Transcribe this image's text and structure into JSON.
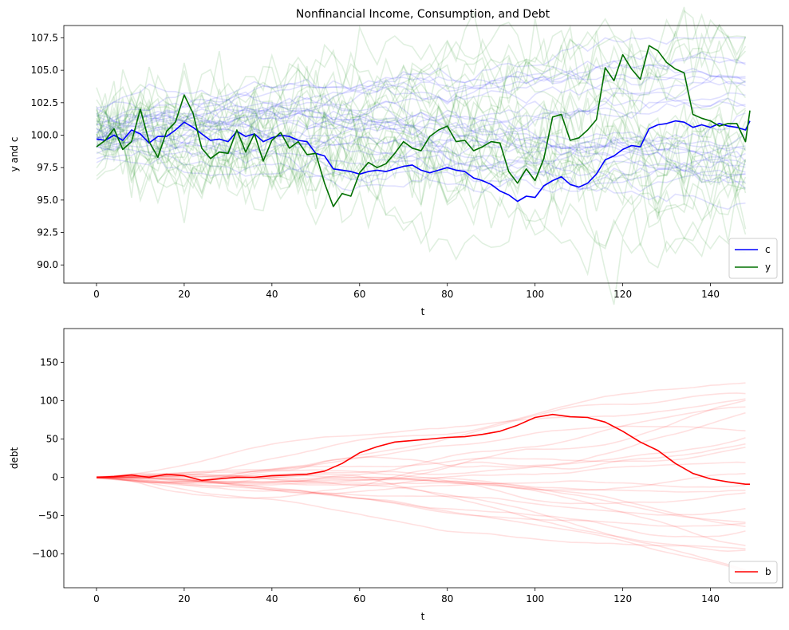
{
  "chart_data": [
    {
      "type": "line",
      "title": "Nonfinancial Income, Consumption, and Debt",
      "xlabel": "t",
      "ylabel": "y and c",
      "xlim": [
        -7.45,
        156.45
      ],
      "ylim": [
        88.6,
        108.45
      ],
      "xticks": [
        0,
        20,
        40,
        60,
        80,
        100,
        120,
        140
      ],
      "yticks": [
        90.0,
        92.5,
        95.0,
        97.5,
        100.0,
        102.5,
        105.0,
        107.5
      ],
      "ytick_labels": [
        "90.0",
        "92.5",
        "95.0",
        "97.5",
        "100.0",
        "102.5",
        "105.0",
        "107.5"
      ],
      "grid": false,
      "legend": {
        "position": "lower-right",
        "entries": [
          "c",
          "y"
        ]
      },
      "background_paths": {
        "count_per_series": 25,
        "alpha": 0.12,
        "note_colors": {
          "c": "#0000ff",
          "y": "#008000"
        }
      },
      "series": [
        {
          "name": "c",
          "color": "#0000ff",
          "x": [
            0,
            2,
            4,
            6,
            8,
            10,
            12,
            14,
            16,
            18,
            20,
            22,
            24,
            26,
            28,
            30,
            32,
            34,
            36,
            38,
            40,
            42,
            44,
            46,
            48,
            50,
            52,
            54,
            56,
            58,
            60,
            62,
            64,
            66,
            68,
            70,
            72,
            74,
            76,
            78,
            80,
            82,
            84,
            86,
            88,
            90,
            92,
            94,
            96,
            98,
            100,
            102,
            104,
            106,
            108,
            110,
            112,
            114,
            116,
            118,
            120,
            122,
            124,
            126,
            128,
            130,
            132,
            134,
            136,
            138,
            140,
            142,
            144,
            146,
            148,
            149
          ],
          "values": [
            99.7,
            99.6,
            100.0,
            99.6,
            100.4,
            100.1,
            99.4,
            99.9,
            99.9,
            100.4,
            101.0,
            100.6,
            100.1,
            99.6,
            99.7,
            99.5,
            100.3,
            99.9,
            100.1,
            99.5,
            99.8,
            100.0,
            99.9,
            99.6,
            99.5,
            98.6,
            98.4,
            97.4,
            97.3,
            97.2,
            97.0,
            97.2,
            97.3,
            97.2,
            97.4,
            97.6,
            97.7,
            97.3,
            97.1,
            97.3,
            97.5,
            97.3,
            97.2,
            96.7,
            96.5,
            96.2,
            95.7,
            95.4,
            94.9,
            95.3,
            95.2,
            96.1,
            96.5,
            96.8,
            96.2,
            96.0,
            96.3,
            97.0,
            98.1,
            98.4,
            98.9,
            99.2,
            99.1,
            100.5,
            100.8,
            100.9,
            101.1,
            101.0,
            100.6,
            100.8,
            100.6,
            100.9,
            100.7,
            100.6,
            100.4,
            101.1
          ]
        },
        {
          "name": "y",
          "color": "#007000",
          "x": [
            0,
            2,
            4,
            6,
            8,
            10,
            12,
            14,
            16,
            18,
            20,
            22,
            24,
            26,
            28,
            30,
            32,
            34,
            36,
            38,
            40,
            42,
            44,
            46,
            48,
            50,
            52,
            54,
            56,
            58,
            60,
            62,
            64,
            66,
            68,
            70,
            72,
            74,
            76,
            78,
            80,
            82,
            84,
            86,
            88,
            90,
            92,
            94,
            96,
            98,
            100,
            102,
            104,
            106,
            108,
            110,
            112,
            114,
            116,
            118,
            120,
            122,
            124,
            126,
            128,
            130,
            132,
            134,
            136,
            138,
            140,
            142,
            144,
            146,
            148,
            149
          ],
          "values": [
            99.1,
            99.6,
            100.5,
            98.9,
            99.5,
            102.0,
            99.5,
            98.3,
            100.3,
            101.0,
            103.1,
            101.7,
            99.0,
            98.2,
            98.7,
            98.6,
            100.4,
            98.7,
            100.1,
            98.0,
            99.6,
            100.2,
            99.0,
            99.5,
            98.5,
            98.6,
            96.3,
            94.5,
            95.5,
            95.3,
            97.1,
            97.9,
            97.5,
            97.8,
            98.6,
            99.5,
            99.0,
            98.8,
            99.9,
            100.4,
            100.7,
            99.5,
            99.6,
            98.8,
            99.1,
            99.5,
            99.4,
            97.2,
            96.3,
            97.4,
            96.5,
            98.2,
            101.4,
            101.6,
            99.6,
            99.8,
            100.4,
            101.2,
            105.2,
            104.2,
            106.2,
            105.1,
            104.3,
            106.9,
            106.5,
            105.6,
            105.1,
            104.8,
            101.6,
            101.3,
            101.1,
            100.7,
            100.9,
            100.9,
            99.5,
            101.9
          ]
        }
      ]
    },
    {
      "type": "line",
      "title": "",
      "xlabel": "t",
      "ylabel": "debt",
      "xlim": [
        -7.45,
        156.45
      ],
      "ylim": [
        -144,
        194
      ],
      "xticks": [
        0,
        20,
        40,
        60,
        80,
        100,
        120,
        140
      ],
      "yticks": [
        -100,
        -50,
        0,
        50,
        100,
        150
      ],
      "ytick_labels": [
        "−100",
        "−50",
        "0",
        "50",
        "100",
        "150"
      ],
      "grid": false,
      "legend": {
        "position": "lower-right",
        "entries": [
          "b"
        ]
      },
      "background_paths": {
        "count_per_series": 25,
        "alpha": 0.12,
        "note_colors": {
          "b": "#ff0000"
        }
      },
      "series": [
        {
          "name": "b",
          "color": "#ff0000",
          "x": [
            0,
            4,
            8,
            12,
            16,
            20,
            24,
            28,
            32,
            36,
            40,
            44,
            48,
            52,
            56,
            60,
            64,
            68,
            72,
            76,
            80,
            84,
            88,
            92,
            96,
            100,
            104,
            108,
            112,
            116,
            120,
            124,
            128,
            132,
            136,
            140,
            144,
            148,
            149
          ],
          "values": [
            0,
            1,
            3,
            0,
            4,
            2,
            -4,
            -2,
            0,
            0,
            2,
            3,
            4,
            8,
            18,
            32,
            40,
            46,
            48,
            50,
            52,
            53,
            56,
            60,
            68,
            78,
            82,
            79,
            78,
            72,
            60,
            46,
            35,
            18,
            5,
            -2,
            -6,
            -9,
            -9
          ]
        }
      ]
    }
  ]
}
